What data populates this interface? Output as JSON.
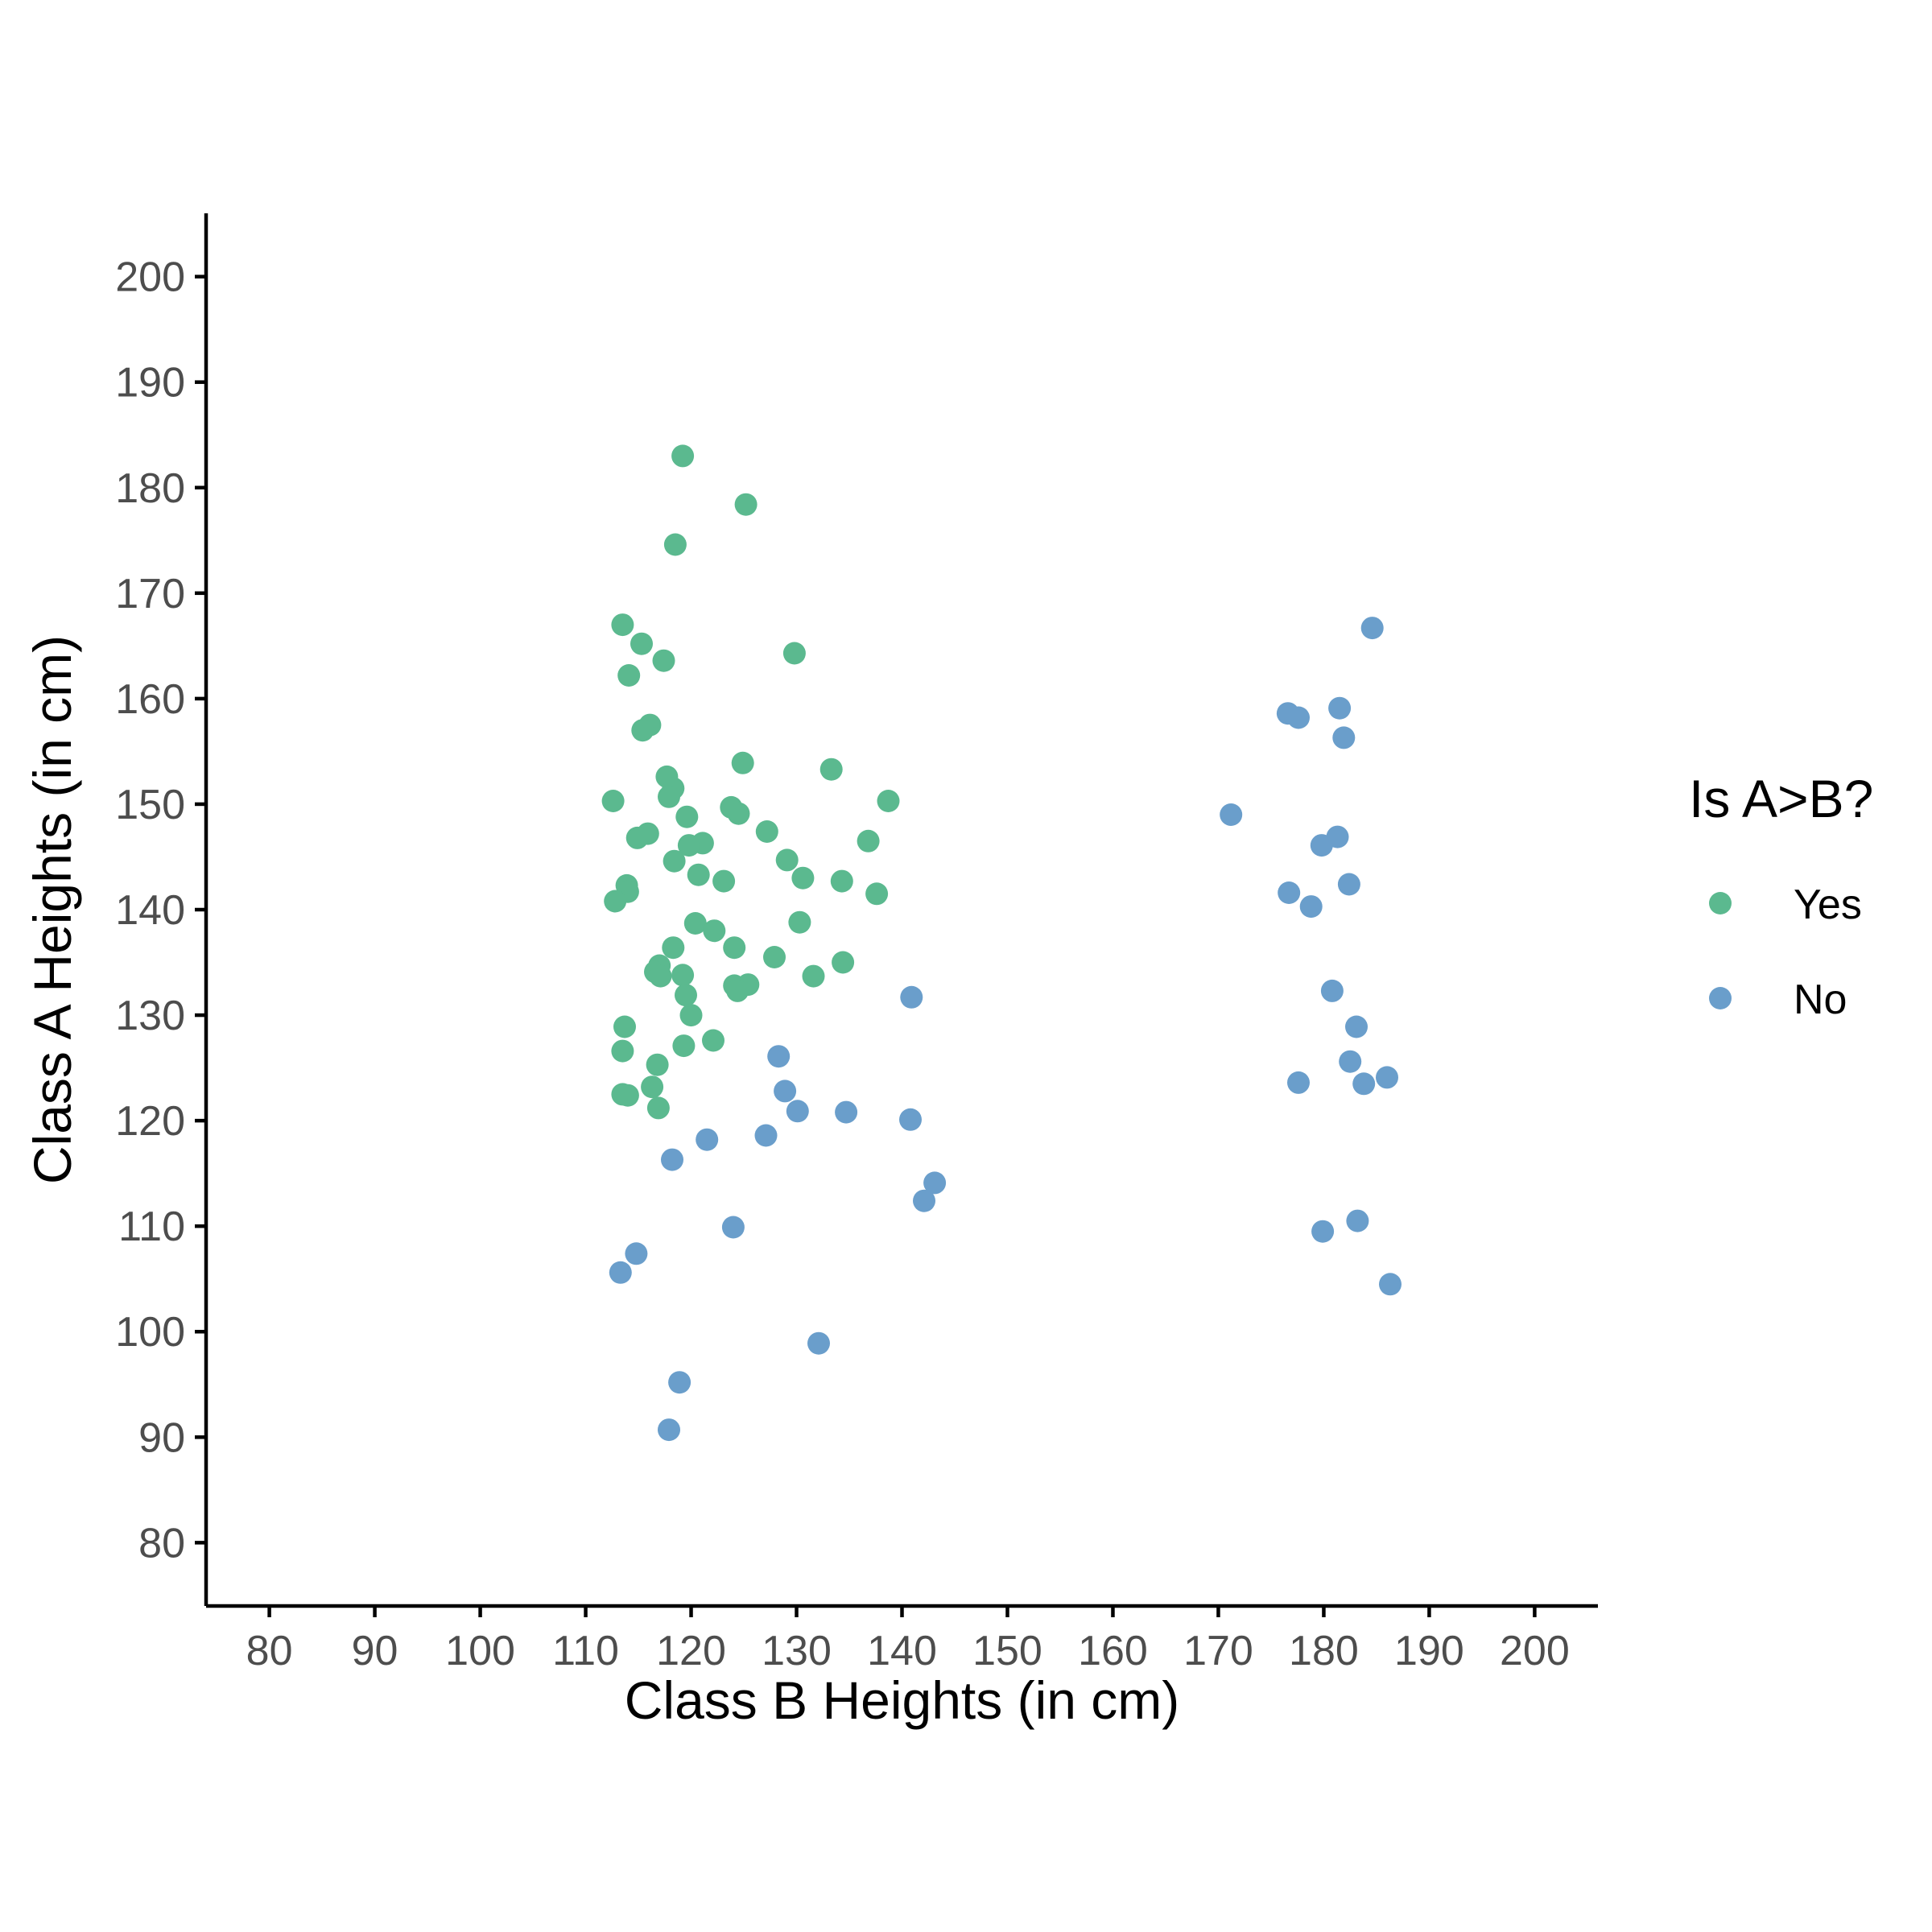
{
  "chart_data": {
    "type": "scatter",
    "title": "",
    "xlabel": "Class B Heights (in cm)",
    "ylabel": "Class A Heights (in cm)",
    "xlim": [
      74,
      206
    ],
    "ylim": [
      74,
      206
    ],
    "xticks": [
      80,
      90,
      100,
      110,
      120,
      130,
      140,
      150,
      160,
      170,
      180,
      190,
      200
    ],
    "yticks": [
      80,
      90,
      100,
      110,
      120,
      130,
      140,
      150,
      160,
      170,
      180,
      190,
      200
    ],
    "grid": false,
    "legend": {
      "title": "Is A>B?",
      "position": "right"
    },
    "series": [
      {
        "name": "Yes",
        "color": "#5bb98f",
        "points": [
          [
            119.2,
            183
          ],
          [
            125.2,
            178.4
          ],
          [
            118.5,
            174.6
          ],
          [
            113.5,
            167
          ],
          [
            129.8,
            164.3
          ],
          [
            115.3,
            165.2
          ],
          [
            117.4,
            163.6
          ],
          [
            114.1,
            162.2
          ],
          [
            116.1,
            157.5
          ],
          [
            115.4,
            157
          ],
          [
            117.7,
            152.6
          ],
          [
            118.3,
            151.5
          ],
          [
            117.9,
            150.7
          ],
          [
            112.6,
            150.3
          ],
          [
            124.9,
            153.9
          ],
          [
            133.3,
            153.3
          ],
          [
            138.7,
            150.3
          ],
          [
            123.8,
            149.7
          ],
          [
            124.5,
            149.1
          ],
          [
            119.6,
            148.8
          ],
          [
            127.2,
            147.4
          ],
          [
            115.9,
            147.2
          ],
          [
            114.9,
            146.8
          ],
          [
            136.8,
            146.5
          ],
          [
            121.1,
            146.3
          ],
          [
            119.8,
            146.1
          ],
          [
            129.1,
            144.7
          ],
          [
            118.4,
            144.6
          ],
          [
            120.7,
            143.3
          ],
          [
            130.6,
            143
          ],
          [
            123.1,
            142.7
          ],
          [
            134.3,
            142.7
          ],
          [
            113.9,
            142.3
          ],
          [
            114,
            141.7
          ],
          [
            137.6,
            141.5
          ],
          [
            112.8,
            140.8
          ],
          [
            130.3,
            138.8
          ],
          [
            120.4,
            138.7
          ],
          [
            122.2,
            138
          ],
          [
            118.3,
            136.4
          ],
          [
            124.1,
            136.4
          ],
          [
            127.9,
            135.5
          ],
          [
            134.4,
            135
          ],
          [
            117,
            134.7
          ],
          [
            116.6,
            134.1
          ],
          [
            117.1,
            133.7
          ],
          [
            119.2,
            133.8
          ],
          [
            131.6,
            133.7
          ],
          [
            125.4,
            132.9
          ],
          [
            124.1,
            132.8
          ],
          [
            124.4,
            132.3
          ],
          [
            119.5,
            131.9
          ],
          [
            120,
            130
          ],
          [
            113.7,
            128.9
          ],
          [
            119.3,
            127.1
          ],
          [
            122.1,
            127.6
          ],
          [
            113.5,
            126.6
          ],
          [
            116.8,
            125.3
          ],
          [
            116.3,
            123.2
          ],
          [
            113.5,
            122.5
          ],
          [
            114,
            122.4
          ],
          [
            116.9,
            121.2
          ]
        ]
      },
      {
        "name": "No",
        "color": "#6a9ecb",
        "points": [
          [
            184.6,
            166.7
          ],
          [
            181.5,
            159.1
          ],
          [
            176.6,
            158.6
          ],
          [
            177.6,
            158.2
          ],
          [
            181.9,
            156.3
          ],
          [
            171.2,
            149
          ],
          [
            181.3,
            146.9
          ],
          [
            179.8,
            146.1
          ],
          [
            182.4,
            142.4
          ],
          [
            176.7,
            141.6
          ],
          [
            178.8,
            140.3
          ],
          [
            140.9,
            131.7
          ],
          [
            180.8,
            132.3
          ],
          [
            183.1,
            128.9
          ],
          [
            128.3,
            126.1
          ],
          [
            182.5,
            125.6
          ],
          [
            186,
            124.1
          ],
          [
            177.6,
            123.6
          ],
          [
            183.8,
            123.5
          ],
          [
            128.9,
            122.8
          ],
          [
            130.1,
            120.9
          ],
          [
            134.7,
            120.8
          ],
          [
            140.8,
            120.1
          ],
          [
            127.1,
            118.6
          ],
          [
            121.5,
            118.2
          ],
          [
            118.2,
            116.3
          ],
          [
            143.1,
            114.1
          ],
          [
            142.1,
            112.4
          ],
          [
            183.2,
            110.5
          ],
          [
            124,
            109.9
          ],
          [
            179.9,
            109.5
          ],
          [
            114.8,
            107.4
          ],
          [
            113.3,
            105.6
          ],
          [
            186.3,
            104.5
          ],
          [
            132.1,
            98.9
          ],
          [
            118.9,
            95.2
          ],
          [
            117.9,
            90.7
          ]
        ]
      }
    ]
  }
}
